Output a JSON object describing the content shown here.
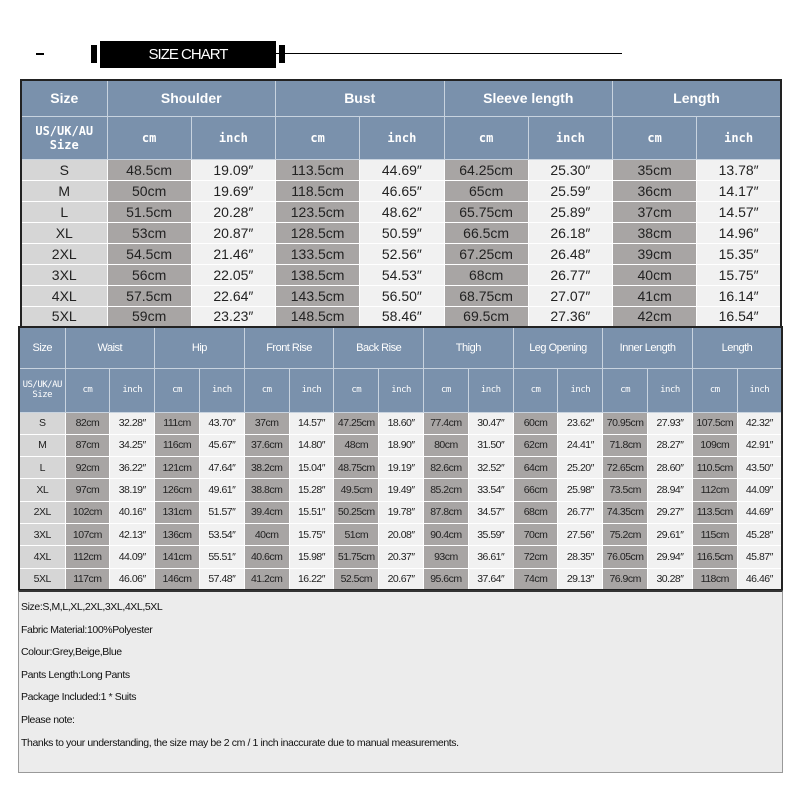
{
  "title": "SIZE CHART",
  "top": {
    "groups": [
      "Size",
      "Shoulder",
      "Bust",
      "Sleeve length",
      "Length"
    ],
    "size_label": "US/UK/AU Size",
    "units": [
      "cm",
      "inch"
    ],
    "rows": [
      [
        "S",
        "48.5cm",
        "19.09″",
        "113.5cm",
        "44.69″",
        "64.25cm",
        "25.30″",
        "35cm",
        "13.78″"
      ],
      [
        "M",
        "50cm",
        "19.69″",
        "118.5cm",
        "46.65″",
        "65cm",
        "25.59″",
        "36cm",
        "14.17″"
      ],
      [
        "L",
        "51.5cm",
        "20.28″",
        "123.5cm",
        "48.62″",
        "65.75cm",
        "25.89″",
        "37cm",
        "14.57″"
      ],
      [
        "XL",
        "53cm",
        "20.87″",
        "128.5cm",
        "50.59″",
        "66.5cm",
        "26.18″",
        "38cm",
        "14.96″"
      ],
      [
        "2XL",
        "54.5cm",
        "21.46″",
        "133.5cm",
        "52.56″",
        "67.25cm",
        "26.48″",
        "39cm",
        "15.35″"
      ],
      [
        "3XL",
        "56cm",
        "22.05″",
        "138.5cm",
        "54.53″",
        "68cm",
        "26.77″",
        "40cm",
        "15.75″"
      ],
      [
        "4XL",
        "57.5cm",
        "22.64″",
        "143.5cm",
        "56.50″",
        "68.75cm",
        "27.07″",
        "41cm",
        "16.14″"
      ],
      [
        "5XL",
        "59cm",
        "23.23″",
        "148.5cm",
        "58.46″",
        "69.5cm",
        "27.36″",
        "42cm",
        "16.54″"
      ]
    ]
  },
  "bottom": {
    "groups": [
      "Size",
      "Waist",
      "Hip",
      "Front Rise",
      "Back Rise",
      "Thigh",
      "Leg Opening",
      "Inner Length",
      "Length"
    ],
    "size_label": "US/UK/AU Size",
    "units": [
      "cm",
      "inch"
    ],
    "rows": [
      [
        "S",
        "82cm",
        "32.28″",
        "111cm",
        "43.70″",
        "37cm",
        "14.57″",
        "47.25cm",
        "18.60″",
        "77.4cm",
        "30.47″",
        "60cm",
        "23.62″",
        "70.95cm",
        "27.93″",
        "107.5cm",
        "42.32″"
      ],
      [
        "M",
        "87cm",
        "34.25″",
        "116cm",
        "45.67″",
        "37.6cm",
        "14.80″",
        "48cm",
        "18.90″",
        "80cm",
        "31.50″",
        "62cm",
        "24.41″",
        "71.8cm",
        "28.27″",
        "109cm",
        "42.91″"
      ],
      [
        "L",
        "92cm",
        "36.22″",
        "121cm",
        "47.64″",
        "38.2cm",
        "15.04″",
        "48.75cm",
        "19.19″",
        "82.6cm",
        "32.52″",
        "64cm",
        "25.20″",
        "72.65cm",
        "28.60″",
        "110.5cm",
        "43.50″"
      ],
      [
        "XL",
        "97cm",
        "38.19″",
        "126cm",
        "49.61″",
        "38.8cm",
        "15.28″",
        "49.5cm",
        "19.49″",
        "85.2cm",
        "33.54″",
        "66cm",
        "25.98″",
        "73.5cm",
        "28.94″",
        "112cm",
        "44.09″"
      ],
      [
        "2XL",
        "102cm",
        "40.16″",
        "131cm",
        "51.57″",
        "39.4cm",
        "15.51″",
        "50.25cm",
        "19.78″",
        "87.8cm",
        "34.57″",
        "68cm",
        "26.77″",
        "74.35cm",
        "29.27″",
        "113.5cm",
        "44.69″"
      ],
      [
        "3XL",
        "107cm",
        "42.13″",
        "136cm",
        "53.54″",
        "40cm",
        "15.75″",
        "51cm",
        "20.08″",
        "90.4cm",
        "35.59″",
        "70cm",
        "27.56″",
        "75.2cm",
        "29.61″",
        "115cm",
        "45.28″"
      ],
      [
        "4XL",
        "112cm",
        "44.09″",
        "141cm",
        "55.51″",
        "40.6cm",
        "15.98″",
        "51.75cm",
        "20.37″",
        "93cm",
        "36.61″",
        "72cm",
        "28.35″",
        "76.05cm",
        "29.94″",
        "116.5cm",
        "45.87″"
      ],
      [
        "5XL",
        "117cm",
        "46.06″",
        "146cm",
        "57.48″",
        "41.2cm",
        "16.22″",
        "52.5cm",
        "20.67″",
        "95.6cm",
        "37.64″",
        "74cm",
        "29.13″",
        "76.9cm",
        "30.28″",
        "118cm",
        "46.46″"
      ]
    ]
  },
  "notes": [
    "Size:S,M,L,XL,2XL,3XL,4XL,5XL",
    "Fabric Material:100%Polyester",
    "Colour:Grey,Beige,Blue",
    "Pants Length:Long Pants",
    "Package Included:1 * Suits",
    "Please note:",
    "Thanks to your understanding, the size may be 2 cm / 1 inch inaccurate due to manual measurements."
  ],
  "colors": {
    "header": "#7a91ac",
    "size_cell": "#d6d6d6",
    "cm_cell": "#a8a5a4",
    "inch_cell": "#f1f1f1"
  }
}
